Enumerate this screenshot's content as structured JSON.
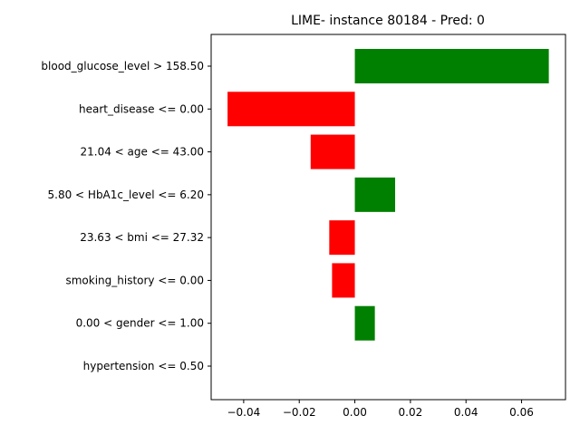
{
  "chart_data": {
    "type": "bar",
    "orientation": "horizontal",
    "title": "LIME- instance 80184 - Pred: 0",
    "xlabel": "",
    "ylabel": "",
    "categories": [
      "blood_glucose_level > 158.50",
      "heart_disease <= 0.00",
      "21.04 < age <= 43.00",
      "5.80 < HbA1c_level <= 6.20",
      "23.63 < bmi <= 27.32",
      "smoking_history <= 0.00",
      "0.00 < gender <= 1.00",
      "hypertension <= 0.50"
    ],
    "values": [
      0.0698,
      -0.0458,
      -0.0159,
      0.0145,
      -0.0092,
      -0.0082,
      0.0072,
      0.0
    ],
    "xlim": [
      -0.0517,
      0.0758
    ],
    "xticks": [
      -0.04,
      -0.02,
      0.0,
      0.02,
      0.04,
      0.06
    ],
    "xtick_labels": [
      "−0.04",
      "−0.02",
      "0.00",
      "0.02",
      "0.04",
      "0.06"
    ],
    "positive_color": "#008000",
    "negative_color": "#ff0000",
    "grid": false,
    "legend": "none"
  }
}
